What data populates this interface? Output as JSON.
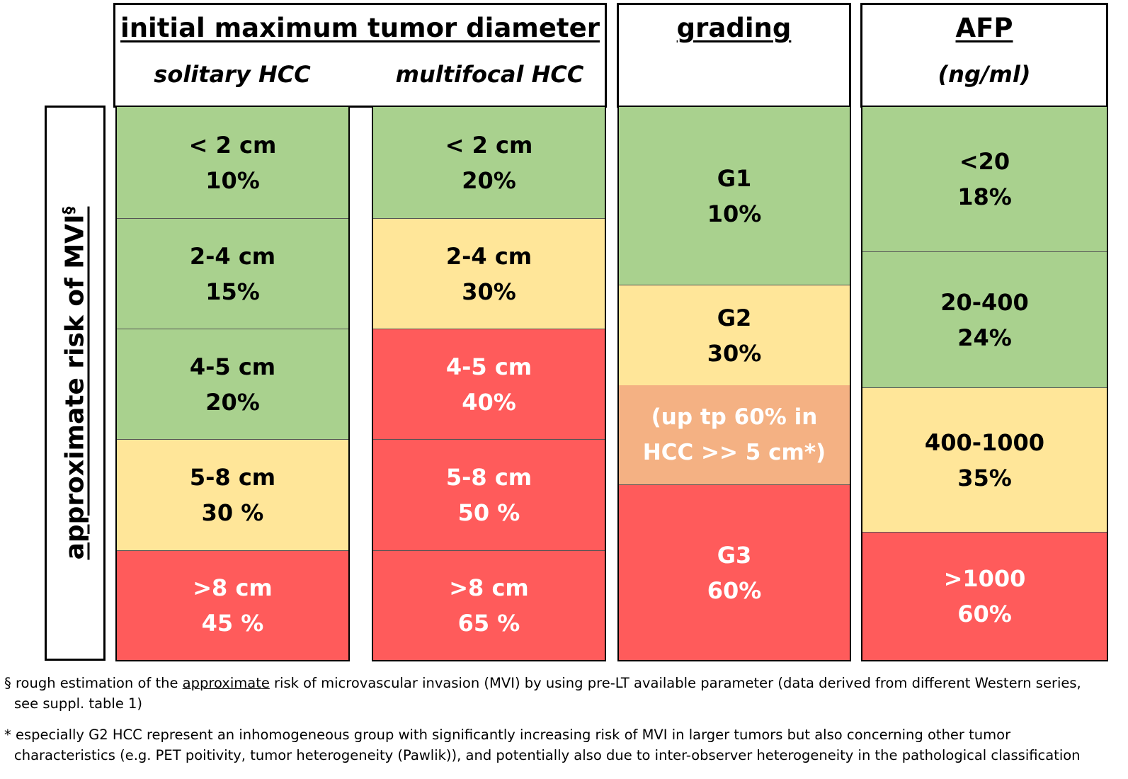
{
  "y_axis_label": "approximate risk of MVI",
  "y_axis_label_marker": "§",
  "groups": {
    "diameter": {
      "title": "initial maximum tumor diameter",
      "solitary": {
        "subtitle": "solitary HCC",
        "cells": [
          {
            "range": "< 2 cm",
            "risk": "10%",
            "risk_level": "low"
          },
          {
            "range": "2-4 cm",
            "risk": "15%",
            "risk_level": "low"
          },
          {
            "range": "4-5 cm",
            "risk": "20%",
            "risk_level": "low"
          },
          {
            "range": "5-8 cm",
            "risk": "30 %",
            "risk_level": "medium"
          },
          {
            "range": ">8 cm",
            "risk": "45 %",
            "risk_level": "high"
          }
        ]
      },
      "multifocal": {
        "subtitle": "multifocal HCC",
        "cells": [
          {
            "range": "< 2 cm",
            "risk": "20%",
            "risk_level": "low"
          },
          {
            "range": "2-4 cm",
            "risk": "30%",
            "risk_level": "medium"
          },
          {
            "range": "4-5 cm",
            "risk": "40%",
            "risk_level": "high"
          },
          {
            "range": "5-8 cm",
            "risk": "50 %",
            "risk_level": "high"
          },
          {
            "range": ">8 cm",
            "risk": "65 %",
            "risk_level": "high"
          }
        ]
      }
    },
    "grading": {
      "title": "grading",
      "cells": [
        {
          "range": "G1",
          "risk": "10%",
          "risk_level": "low"
        },
        {
          "range": "G2",
          "risk": "30%",
          "risk_level": "medium"
        },
        {
          "range": "(up tp 60% in",
          "risk": "HCC >> 5 cm*)",
          "risk_level": "elevated"
        },
        {
          "range": "G3",
          "risk": "60%",
          "risk_level": "high"
        }
      ]
    },
    "afp": {
      "title": "AFP",
      "subtitle": "(ng/ml)",
      "cells": [
        {
          "range": "<20",
          "risk": "18%",
          "risk_level": "low"
        },
        {
          "range": "20-400",
          "risk": "24%",
          "risk_level": "low"
        },
        {
          "range": "400-1000",
          "risk": "35%",
          "risk_level": "medium"
        },
        {
          "range": ">1000",
          "risk": "60%",
          "risk_level": "high"
        }
      ]
    }
  },
  "colors": {
    "low": "#a9d18e",
    "medium": "#ffe699",
    "elevated": "#f4b183",
    "high": "#ff5b5b"
  },
  "footnotes": {
    "section": {
      "marker": "§",
      "pre": " rough estimation of the ",
      "underlined": "approximate",
      "post": " risk of microvascular invasion (MVI) by using pre-LT available parameter (data derived from different Western series,",
      "line2": "see suppl. table 1)"
    },
    "asterisk": {
      "line1": "* especially G2 HCC represent an inhomogeneous  group with significantly increasing risk of MVI in larger tumors but also concerning other tumor",
      "line2": "characteristics (e.g. PET  poitivity, tumor heterogeneity (Pawlik)), and potentially also due to inter-observer heterogeneity in the pathological classification"
    }
  }
}
